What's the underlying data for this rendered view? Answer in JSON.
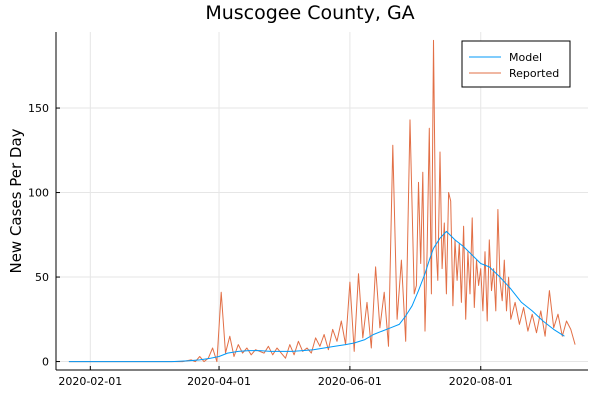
{
  "chart_data": {
    "type": "line",
    "title": "Muscogee County, GA",
    "xlabel": "",
    "ylabel": "New Cases Per Day",
    "xlim": [
      "2020-01-16",
      "2020-09-20"
    ],
    "ylim": [
      -5,
      195
    ],
    "grid": true,
    "legend_position": "top-right",
    "x_ticks": [
      "2020-02-01",
      "2020-04-01",
      "2020-06-01",
      "2020-08-01"
    ],
    "y_ticks": [
      0,
      50,
      100,
      150
    ],
    "series": [
      {
        "name": "Model",
        "color": "#009af9",
        "x": [
          "2020-01-22",
          "2020-02-15",
          "2020-03-10",
          "2020-03-18",
          "2020-03-23",
          "2020-03-28",
          "2020-04-01",
          "2020-04-05",
          "2020-04-10",
          "2020-04-15",
          "2020-04-20",
          "2020-04-25",
          "2020-05-01",
          "2020-05-05",
          "2020-05-10",
          "2020-05-15",
          "2020-05-20",
          "2020-05-25",
          "2020-05-30",
          "2020-06-03",
          "2020-06-08",
          "2020-06-12",
          "2020-06-16",
          "2020-06-20",
          "2020-06-24",
          "2020-06-27",
          "2020-06-30",
          "2020-07-03",
          "2020-07-06",
          "2020-07-08",
          "2020-07-10",
          "2020-07-13",
          "2020-07-16",
          "2020-07-20",
          "2020-07-24",
          "2020-07-28",
          "2020-08-01",
          "2020-08-05",
          "2020-08-10",
          "2020-08-15",
          "2020-08-20",
          "2020-08-25",
          "2020-08-30",
          "2020-09-04",
          "2020-09-09"
        ],
        "values": [
          0,
          0,
          0,
          0.5,
          1,
          2,
          3,
          5,
          6,
          6.5,
          6.5,
          6,
          6,
          6,
          6.5,
          7,
          8,
          9,
          10,
          11,
          13,
          16,
          18,
          20,
          22,
          27,
          33,
          42,
          52,
          60,
          67,
          73,
          77,
          72,
          68,
          63,
          58,
          56,
          50,
          43,
          35,
          30,
          24,
          19,
          15
        ]
      },
      {
        "name": "Reported",
        "color": "#e26f46",
        "x": [
          "2020-01-22",
          "2020-02-15",
          "2020-03-15",
          "2020-03-19",
          "2020-03-21",
          "2020-03-23",
          "2020-03-25",
          "2020-03-27",
          "2020-03-29",
          "2020-03-31",
          "2020-04-02",
          "2020-04-04",
          "2020-04-06",
          "2020-04-08",
          "2020-04-10",
          "2020-04-12",
          "2020-04-14",
          "2020-04-16",
          "2020-04-18",
          "2020-04-20",
          "2020-04-22",
          "2020-04-24",
          "2020-04-26",
          "2020-04-28",
          "2020-04-30",
          "2020-05-02",
          "2020-05-04",
          "2020-05-06",
          "2020-05-08",
          "2020-05-10",
          "2020-05-12",
          "2020-05-14",
          "2020-05-16",
          "2020-05-18",
          "2020-05-20",
          "2020-05-22",
          "2020-05-24",
          "2020-05-26",
          "2020-05-28",
          "2020-05-30",
          "2020-06-01",
          "2020-06-03",
          "2020-06-05",
          "2020-06-07",
          "2020-06-09",
          "2020-06-11",
          "2020-06-13",
          "2020-06-15",
          "2020-06-17",
          "2020-06-19",
          "2020-06-21",
          "2020-06-23",
          "2020-06-25",
          "2020-06-27",
          "2020-06-29",
          "2020-07-01",
          "2020-07-02",
          "2020-07-03",
          "2020-07-04",
          "2020-07-05",
          "2020-07-06",
          "2020-07-07",
          "2020-07-08",
          "2020-07-09",
          "2020-07-10",
          "2020-07-11",
          "2020-07-12",
          "2020-07-13",
          "2020-07-14",
          "2020-07-15",
          "2020-07-16",
          "2020-07-17",
          "2020-07-18",
          "2020-07-19",
          "2020-07-20",
          "2020-07-21",
          "2020-07-22",
          "2020-07-23",
          "2020-07-24",
          "2020-07-25",
          "2020-07-26",
          "2020-07-27",
          "2020-07-28",
          "2020-07-29",
          "2020-07-30",
          "2020-07-31",
          "2020-08-01",
          "2020-08-02",
          "2020-08-03",
          "2020-08-04",
          "2020-08-05",
          "2020-08-06",
          "2020-08-07",
          "2020-08-08",
          "2020-08-09",
          "2020-08-10",
          "2020-08-11",
          "2020-08-12",
          "2020-08-13",
          "2020-08-14",
          "2020-08-15",
          "2020-08-17",
          "2020-08-19",
          "2020-08-21",
          "2020-08-23",
          "2020-08-25",
          "2020-08-27",
          "2020-08-29",
          "2020-08-31",
          "2020-09-02",
          "2020-09-04",
          "2020-09-06",
          "2020-09-08",
          "2020-09-10",
          "2020-09-12",
          "2020-09-14"
        ],
        "values": [
          0,
          0,
          0,
          1,
          0,
          3,
          0,
          2,
          8,
          0,
          41,
          5,
          15,
          3,
          10,
          5,
          8,
          4,
          7,
          6,
          5,
          9,
          4,
          8,
          5,
          2,
          10,
          4,
          12,
          6,
          8,
          5,
          14,
          9,
          16,
          7,
          19,
          12,
          24,
          10,
          47,
          6,
          52,
          14,
          35,
          8,
          56,
          20,
          41,
          9,
          128,
          25,
          60,
          12,
          143,
          40,
          45,
          106,
          58,
          112,
          18,
          65,
          138,
          40,
          190,
          72,
          48,
          124,
          55,
          82,
          40,
          100,
          95,
          33,
          72,
          48,
          70,
          35,
          80,
          25,
          65,
          40,
          85,
          32,
          60,
          45,
          55,
          30,
          65,
          24,
          72,
          42,
          55,
          30,
          90,
          48,
          36,
          60,
          30,
          50,
          25,
          35,
          22,
          32,
          18,
          28,
          17,
          30,
          15,
          42,
          20,
          28,
          15,
          24,
          19,
          10
        ]
      }
    ]
  }
}
